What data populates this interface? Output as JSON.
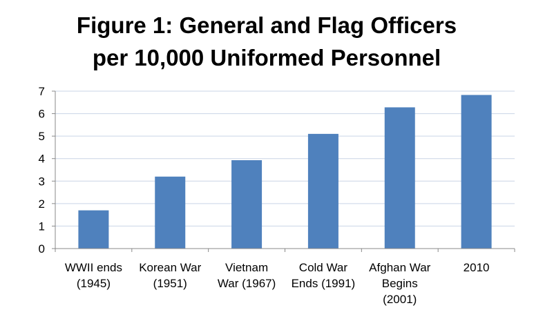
{
  "chart_data": {
    "type": "bar",
    "title": [
      "Figure 1: General and Flag Officers",
      "per 10,000 Uniformed Personnel"
    ],
    "xlabel": "",
    "ylabel": "",
    "categories": [
      [
        "WWII ends",
        "(1945)"
      ],
      [
        "Korean War",
        "(1951)"
      ],
      [
        "Vietnam",
        "War (1967)"
      ],
      [
        "Cold War",
        "Ends (1991)"
      ],
      [
        "Afghan War",
        "Begins",
        "(2001)"
      ],
      [
        "2010"
      ]
    ],
    "values": [
      1.7,
      3.2,
      3.93,
      5.1,
      6.28,
      6.83
    ],
    "ylim": [
      0,
      7
    ],
    "yticks": [
      "0",
      "1",
      "2",
      "3",
      "4",
      "5",
      "6",
      "7"
    ],
    "grid": true,
    "legend": "none",
    "bar_color": "#4f81bd"
  }
}
